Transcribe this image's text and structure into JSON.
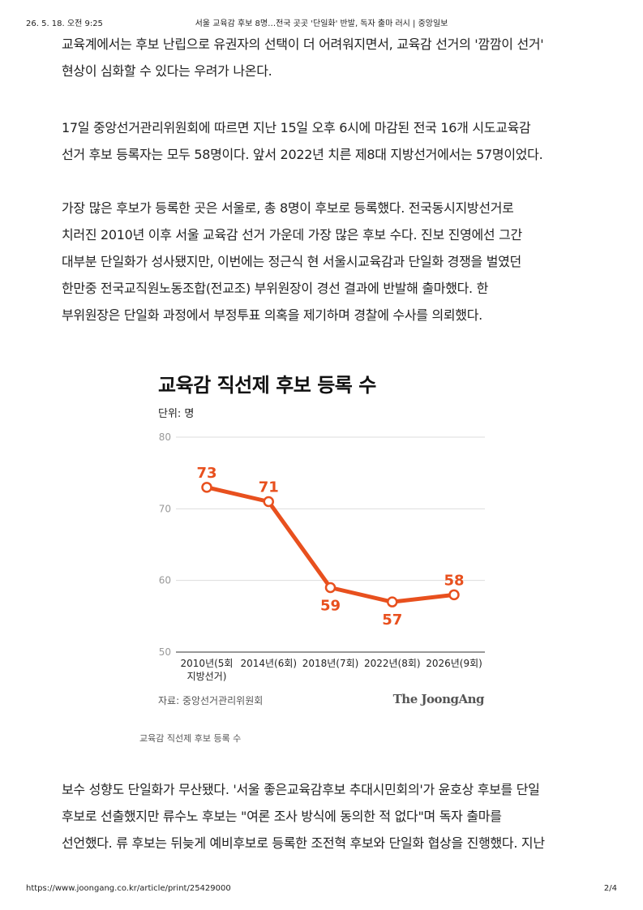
{
  "print_header": {
    "datetime": "26. 5. 18. 오전 9:25",
    "page_title": "서울 교육감 후보 8명…전국 곳곳 '단일화' 반발, 독자 출마 러시 | 중앙일보"
  },
  "paragraphs": {
    "p1": [
      "교육계에서는 후보 난립으로 유권자의 선택이 더 어려워지면서, 교육감 선거의 '깜깜이 선거'",
      "현상이 심화할 수 있다는 우려가 나온다."
    ],
    "p2": [
      "17일 중앙선거관리위원회에 따르면 지난 15일 오후 6시에 마감된 전국 16개 시도교육감",
      "선거 후보 등록자는 모두 58명이다. 앞서 2022년 치른 제8대 지방선거에서는 57명이었다."
    ],
    "p3": [
      "가장 많은 후보가 등록한 곳은 서울로, 총 8명이 후보로 등록했다. 전국동시지방선거로",
      "치러진 2010년 이후 서울 교육감 선거 가운데 가장 많은 후보 수다. 진보 진영에선 그간",
      "대부분 단일화가 성사됐지만, 이번에는 정근식 현 서울시교육감과 단일화 경쟁을 벌였던",
      "한만중 전국교직원노동조합(전교조) 부위원장이 경선 결과에 반발해 출마했다. 한",
      "부위원장은 단일화 과정에서 부정투표 의혹을 제기하며 경찰에 수사를 의뢰했다."
    ],
    "p4": [
      "보수 성향도 단일화가 무산됐다. '서울 좋은교육감후보 추대시민회의'가 윤호상 후보를 단일",
      "후보로 선출했지만 류수노 후보는 \"여론 조사 방식에 동의한 적 없다\"며 독자 출마를",
      "선언했다. 류 후보는 뒤늦게 예비후보로 등록한 조전혁 후보와 단일화 협상을 진행했다. 지난"
    ]
  },
  "chart_data": {
    "type": "line",
    "title": "교육감 직선제 후보 등록 수",
    "unit_label": "단위: 명",
    "x": [
      "2010년(5회 지방선거)",
      "2014년(6회)",
      "2018년(7회)",
      "2022년(8회)",
      "2026년(9회)"
    ],
    "x_tick_lines": [
      [
        "2010년(5회",
        "지방선거)"
      ],
      [
        "2014년(6회)"
      ],
      [
        "2018년(7회)"
      ],
      [
        "2022년(8회)"
      ],
      [
        "2026년(9회)"
      ]
    ],
    "values": [
      73,
      71,
      59,
      57,
      58
    ],
    "ylim": [
      50,
      80
    ],
    "yticks": [
      50,
      60,
      70,
      80
    ],
    "grid": true,
    "color": "#e8501e",
    "source": "자료: 중앙선거관리위원회",
    "logo_text": "The JoongAng"
  },
  "caption": "교육감 직선제 후보 등록 수",
  "print_footer": {
    "url": "https://www.joongang.co.kr/article/print/25429000",
    "page": "2/4"
  }
}
